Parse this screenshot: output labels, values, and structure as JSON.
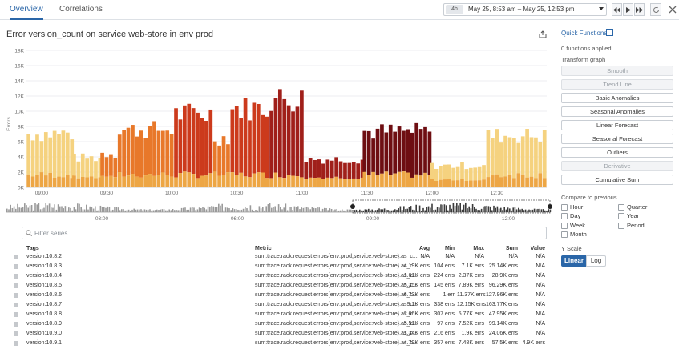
{
  "tabs": [
    {
      "label": "Overview",
      "active": true
    },
    {
      "label": "Correlations",
      "active": false
    }
  ],
  "time": {
    "chip": "4h",
    "range": "May 25, 8:53 am – May 25, 12:53 pm"
  },
  "graph": {
    "title": "Error version_count on service web-store in env prod"
  },
  "filter": {
    "placeholder": "Filter series"
  },
  "table": {
    "headers": {
      "tags": "Tags",
      "metric": "Metric",
      "avg": "Avg",
      "min": "Min",
      "max": "Max",
      "sum": "Sum",
      "value": "Value"
    },
    "rows": [
      {
        "tag": "version:10.8.2",
        "metric": "sum:trace.rack.request.errors{env:prod,service:web-store}.as_c...",
        "avg": "N/A",
        "min": "N/A",
        "max": "N/A",
        "sum": "N/A",
        "value": "N/A"
      },
      {
        "tag": "version:10.8.3",
        "metric": "sum:trace.rack.request.errors{env:prod,service:web-store}.as_c...",
        "avg": "4.19K errs",
        "min": "104 errs",
        "max": "7.1K errs",
        "sum": "25.14K errs",
        "value": "N/A"
      },
      {
        "tag": "version:10.8.4",
        "metric": "sum:trace.rack.request.errors{env:prod,service:web-store}.as_c...",
        "avg": "1.61K errs",
        "min": "224 errs",
        "max": "2.37K errs",
        "sum": "28.9K errs",
        "value": "N/A"
      },
      {
        "tag": "version:10.8.5",
        "metric": "sum:trace.rack.request.errors{env:prod,service:web-store}.as_c...",
        "avg": "5.35K errs",
        "min": "145 errs",
        "max": "7.89K errs",
        "sum": "96.29K errs",
        "value": "N/A"
      },
      {
        "tag": "version:10.8.6",
        "metric": "sum:trace.rack.request.errors{env:prod,service:web-store}.as_c...",
        "avg": "6.73K errs",
        "min": "1 err",
        "max": "11.37K errs",
        "sum": "127.96K errs",
        "value": "N/A"
      },
      {
        "tag": "version:10.8.7",
        "metric": "sum:trace.rack.request.errors{env:prod,service:web-store}.as_c...",
        "avg": "9.1K errs",
        "min": "338 errs",
        "max": "12.15K errs",
        "sum": "163.77K errs",
        "value": "N/A"
      },
      {
        "tag": "version:10.8.8",
        "metric": "sum:trace.rack.request.errors{env:prod,service:web-store}.as_c...",
        "avg": "2.66K errs",
        "min": "307 errs",
        "max": "5.77K errs",
        "sum": "47.95K errs",
        "value": "N/A"
      },
      {
        "tag": "version:10.8.9",
        "metric": "sum:trace.rack.request.errors{env:prod,service:web-store}.as_c...",
        "avg": "5.51K errs",
        "min": "97 errs",
        "max": "7.52K errs",
        "sum": "99.14K errs",
        "value": "N/A"
      },
      {
        "tag": "version:10.9.0",
        "metric": "sum:trace.rack.request.errors{env:prod,service:web-store}.as_c...",
        "avg": "1.34K errs",
        "min": "216 errs",
        "max": "1.9K errs",
        "sum": "24.06K errs",
        "value": "N/A"
      },
      {
        "tag": "version:10.9.1",
        "metric": "sum:trace.rack.request.errors{env:prod,service:web-store}.as_c...",
        "avg": "4.79K errs",
        "min": "357 errs",
        "max": "7.48K errs",
        "sum": "57.5K errs",
        "value": "4.9K errs"
      }
    ]
  },
  "quick_functions": {
    "title": "Quick Functions",
    "applied": "0 functions applied",
    "transform_label": "Transform graph",
    "buttons": [
      {
        "label": "Smooth",
        "disabled": true
      },
      {
        "label": "Trend Line",
        "disabled": true
      },
      {
        "label": "Basic Anomalies",
        "disabled": false
      },
      {
        "label": "Seasonal Anomalies",
        "disabled": false
      },
      {
        "label": "Linear Forecast",
        "disabled": false
      },
      {
        "label": "Seasonal Forecast",
        "disabled": false
      },
      {
        "label": "Outliers",
        "disabled": false
      },
      {
        "label": "Derivative",
        "disabled": true
      },
      {
        "label": "Cumulative Sum",
        "disabled": false
      }
    ],
    "compare_label": "Compare to previous",
    "compare_left": [
      "Hour",
      "Day",
      "Week",
      "Month"
    ],
    "compare_right": [
      "Quarter",
      "Year",
      "Period"
    ],
    "yscale_label": "Y Scale",
    "yscale_options": [
      "Linear",
      "Log"
    ],
    "yscale_selected": "Linear"
  },
  "colors": {
    "accent": "#2a66a8",
    "base": "#eda645",
    "band_light": "#f5d27f",
    "band_orange": "#e8782a",
    "band_red": "#cc3a1c",
    "band_crimson": "#a01f1a",
    "band_dark": "#6e0e12"
  },
  "chart_data": {
    "type": "bar",
    "stacked": true,
    "ylabel": "Errors",
    "ylim": [
      0,
      18000
    ],
    "yticks": [
      "0K",
      "2K",
      "4K",
      "6K",
      "8K",
      "10K",
      "12K",
      "14K",
      "16K",
      "18K"
    ],
    "xtick_labels": [
      "09:00",
      "09:30",
      "10:00",
      "10:30",
      "11:00",
      "11:30",
      "12:00",
      "12:30"
    ],
    "x_range": [
      "08:53",
      "12:53"
    ],
    "bucket_minutes": 2,
    "segments": [
      {
        "from": "08:53",
        "to": "09:14",
        "color": "band_light",
        "peak": 8200
      },
      {
        "from": "09:14",
        "to": "09:27",
        "color": "band_light",
        "peak": 4500
      },
      {
        "from": "09:27",
        "to": "09:35",
        "color": "band_orange",
        "peak": 5200
      },
      {
        "from": "09:35",
        "to": "10:01",
        "color": "band_orange",
        "peak": 8800
      },
      {
        "from": "10:01",
        "to": "10:19",
        "color": "band_red",
        "peak": 11200
      },
      {
        "from": "10:19",
        "to": "10:27",
        "color": "band_orange",
        "peak": 7600
      },
      {
        "from": "10:27",
        "to": "10:45",
        "color": "band_red",
        "peak": 12100
      },
      {
        "from": "10:45",
        "to": "11:01",
        "color": "band_crimson",
        "peak": 13500
      },
      {
        "from": "11:01",
        "to": "11:28",
        "color": "band_crimson",
        "peak": 4300
      },
      {
        "from": "11:28",
        "to": "11:59",
        "color": "band_dark",
        "peak": 8500
      },
      {
        "from": "11:59",
        "to": "12:25",
        "color": "band_light",
        "peak": 3300
      },
      {
        "from": "12:25",
        "to": "12:53",
        "color": "band_light",
        "peak": 7900
      }
    ],
    "navigator_ticks": [
      "03:00",
      "06:00",
      "09:00",
      "12:00"
    ]
  }
}
